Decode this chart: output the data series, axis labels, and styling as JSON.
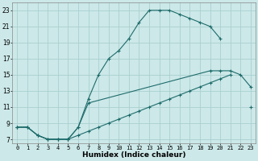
{
  "xlabel": "Humidex (Indice chaleur)",
  "bg_color": "#cce8e8",
  "grid_color": "#aacfcf",
  "line_color": "#1e6b6b",
  "xlim": [
    -0.5,
    23.5
  ],
  "ylim": [
    6.5,
    24
  ],
  "xticks": [
    0,
    1,
    2,
    3,
    4,
    5,
    6,
    7,
    8,
    9,
    10,
    11,
    12,
    13,
    14,
    15,
    16,
    17,
    18,
    19,
    20,
    21,
    22,
    23
  ],
  "yticks": [
    7,
    9,
    11,
    13,
    15,
    17,
    19,
    21,
    23
  ],
  "upper_line": {
    "x": [
      0,
      1,
      2,
      3,
      4,
      5,
      6,
      7,
      8,
      9,
      10,
      11,
      12,
      13,
      14,
      15,
      16,
      17,
      18,
      19,
      20
    ],
    "y": [
      8.5,
      8.5,
      7.5,
      7,
      7,
      7,
      8.5,
      12,
      15,
      17,
      18,
      19.5,
      21.5,
      23,
      23,
      23,
      22.5,
      22,
      21.5,
      21,
      19.5
    ]
  },
  "mid_line": {
    "x": [
      0,
      1,
      2,
      3,
      4,
      5,
      6,
      7,
      19,
      20,
      21,
      22,
      23
    ],
    "y": [
      8.5,
      8.5,
      7.5,
      7,
      7,
      7,
      8.5,
      11.5,
      15.5,
      15.5,
      15.5,
      15,
      13.5
    ]
  },
  "lower_line": {
    "x": [
      0,
      1,
      2,
      3,
      4,
      5,
      6,
      7,
      8,
      9,
      10,
      11,
      12,
      13,
      14,
      15,
      16,
      17,
      18,
      19,
      20,
      21,
      22,
      23
    ],
    "y": [
      8.5,
      8.5,
      7.5,
      7,
      7,
      7,
      7.5,
      8,
      8.5,
      9,
      9.5,
      10,
      10.5,
      11,
      11.5,
      12,
      12.5,
      13,
      13.5,
      14,
      14.5,
      15,
      null,
      11
    ]
  }
}
